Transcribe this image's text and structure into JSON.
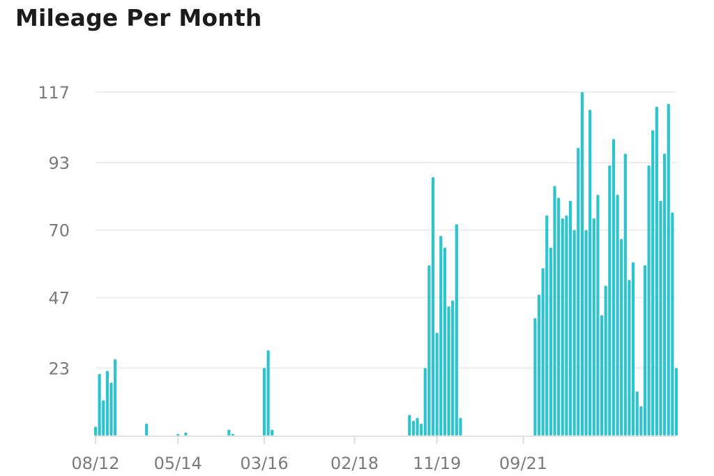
{
  "chart_data": {
    "type": "bar",
    "title": "Mileage Per Month",
    "xlabel": "",
    "ylabel": "",
    "ylim": [
      0,
      117
    ],
    "yticks": [
      23,
      47,
      70,
      93,
      117
    ],
    "grid": true,
    "legend": "none",
    "bar_color": "#2ec4cf",
    "x_tick_labels": [
      "08/12",
      "05/14",
      "03/16",
      "02/18",
      "11/19",
      "09/21"
    ],
    "x_tick_indices": [
      0,
      21,
      43,
      66,
      87,
      109
    ],
    "values": [
      3,
      21,
      12,
      22,
      18,
      26,
      0,
      0,
      0,
      0,
      0,
      0,
      0,
      4,
      0,
      0,
      0,
      0,
      0,
      0,
      0,
      0.5,
      0,
      1,
      0,
      0,
      0,
      0,
      0,
      0,
      0,
      0,
      0,
      0,
      2,
      0.5,
      0,
      0,
      0,
      0,
      0,
      0,
      0,
      23,
      29,
      2,
      0,
      0,
      0,
      0,
      0,
      0,
      0,
      0,
      0,
      0,
      0,
      0,
      0,
      0,
      0,
      0,
      0,
      0,
      0,
      0,
      0,
      0,
      0,
      0,
      0,
      0,
      0,
      0,
      0,
      0,
      0,
      0,
      0,
      0,
      7,
      5,
      6,
      4,
      23,
      58,
      88,
      35,
      68,
      64,
      44,
      46,
      72,
      6,
      0,
      0,
      0,
      0,
      0,
      0,
      0,
      0,
      0,
      0,
      0,
      0,
      0,
      0,
      0,
      0,
      0,
      0,
      40,
      48,
      57,
      75,
      64,
      85,
      81,
      74,
      75,
      80,
      70,
      98,
      117,
      70,
      111,
      74,
      82,
      41,
      51,
      92,
      101,
      82,
      67,
      96,
      53,
      59,
      15,
      10,
      58,
      92,
      104,
      112,
      80,
      96,
      113,
      76,
      23
    ]
  }
}
